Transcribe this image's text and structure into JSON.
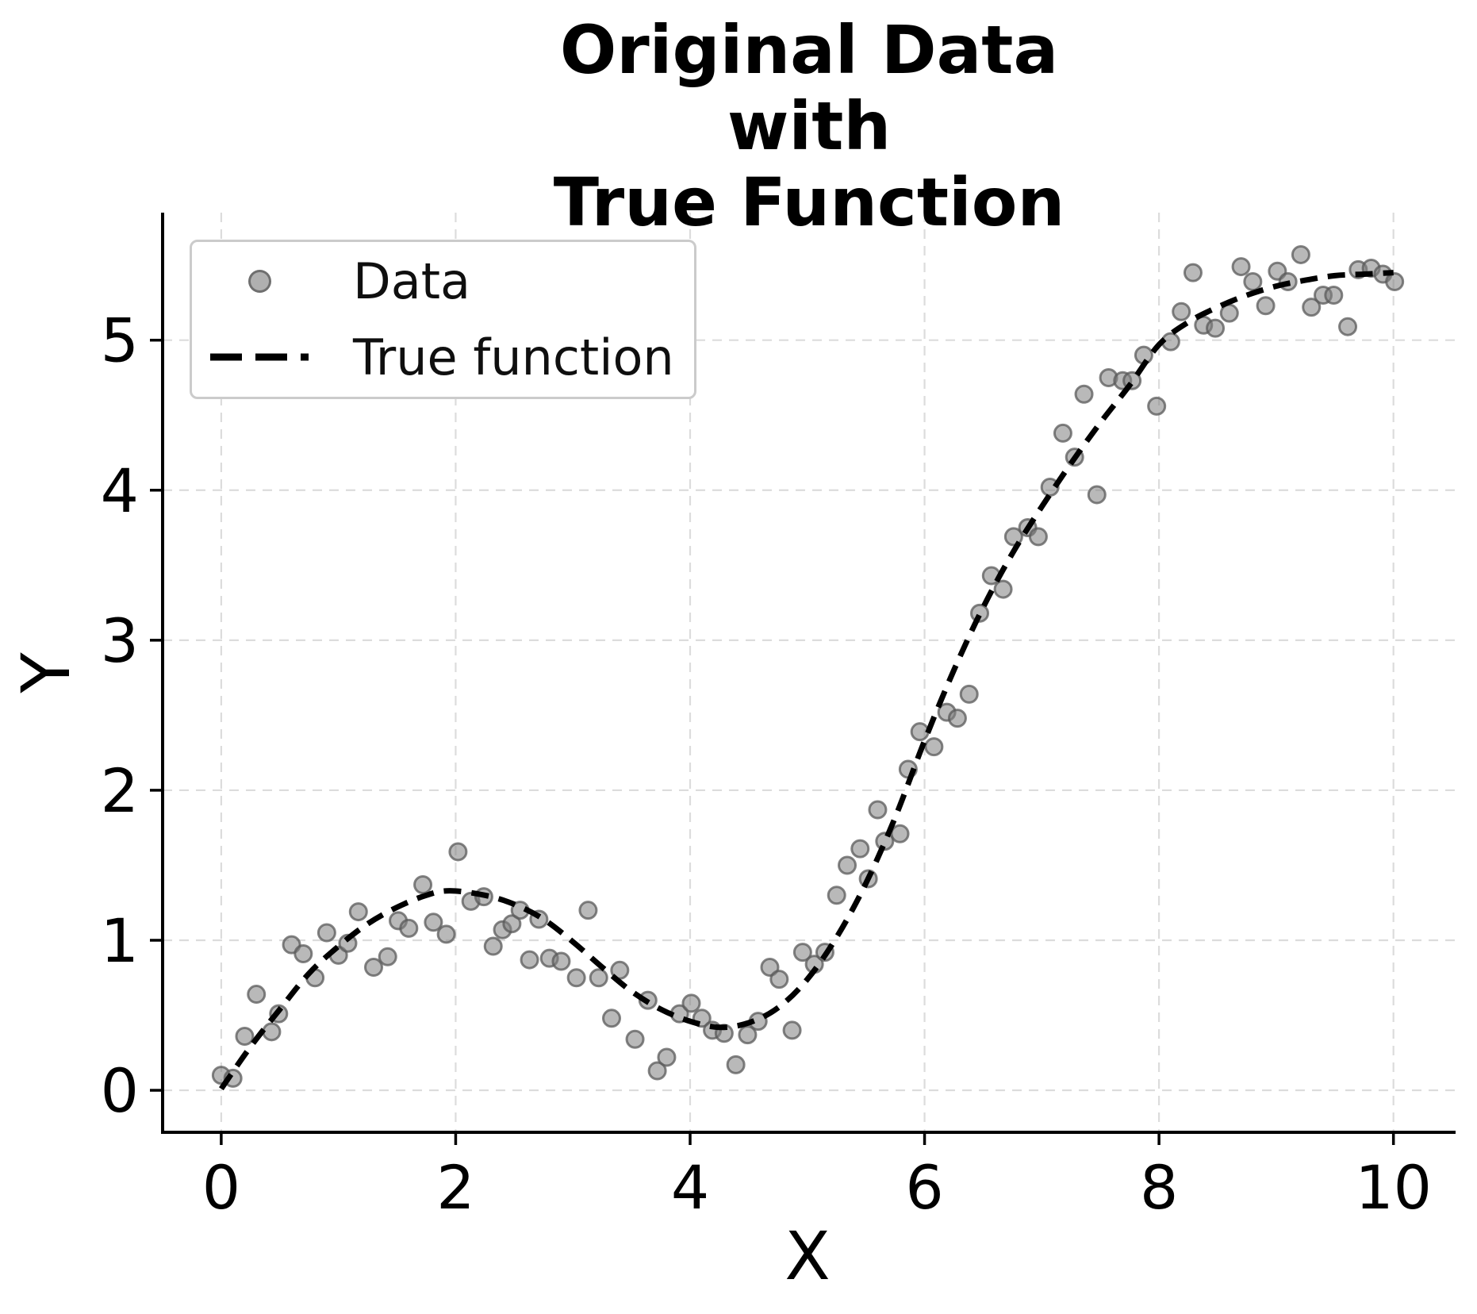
{
  "chart": {
    "title": "Original Data with\nTrue Function",
    "xlabel": "X",
    "ylabel": "Y",
    "legend": {
      "data_label": "Data",
      "true_function_label": "True function"
    }
  },
  "chart_data": {
    "type": "scatter",
    "title": "Original Data with True Function",
    "xlabel": "X",
    "ylabel": "Y",
    "xlim": [
      -0.5,
      10.53
    ],
    "ylim": [
      -0.28,
      5.85
    ],
    "xticks": [
      0,
      2,
      4,
      6,
      8,
      10
    ],
    "yticks": [
      0,
      1,
      2,
      3,
      4,
      5
    ],
    "grid": true,
    "legend_position": "upper left",
    "series": [
      {
        "name": "Data",
        "type": "scatter",
        "marker_color": "#808080",
        "points": [
          [
            0.0,
            0.1
          ],
          [
            0.1,
            0.08
          ],
          [
            0.2,
            0.36
          ],
          [
            0.3,
            0.64
          ],
          [
            0.43,
            0.39
          ],
          [
            0.49,
            0.51
          ],
          [
            0.6,
            0.97
          ],
          [
            0.7,
            0.91
          ],
          [
            0.8,
            0.75
          ],
          [
            0.9,
            1.05
          ],
          [
            1.0,
            0.9
          ],
          [
            1.08,
            0.98
          ],
          [
            1.17,
            1.19
          ],
          [
            1.3,
            0.82
          ],
          [
            1.42,
            0.89
          ],
          [
            1.51,
            1.13
          ],
          [
            1.6,
            1.08
          ],
          [
            1.72,
            1.37
          ],
          [
            1.81,
            1.12
          ],
          [
            1.92,
            1.04
          ],
          [
            2.02,
            1.59
          ],
          [
            2.13,
            1.26
          ],
          [
            2.24,
            1.29
          ],
          [
            2.32,
            0.96
          ],
          [
            2.4,
            1.07
          ],
          [
            2.48,
            1.11
          ],
          [
            2.55,
            1.2
          ],
          [
            2.63,
            0.87
          ],
          [
            2.71,
            1.14
          ],
          [
            2.8,
            0.88
          ],
          [
            2.9,
            0.86
          ],
          [
            3.03,
            0.75
          ],
          [
            3.13,
            1.2
          ],
          [
            3.22,
            0.75
          ],
          [
            3.33,
            0.48
          ],
          [
            3.4,
            0.8
          ],
          [
            3.53,
            0.34
          ],
          [
            3.64,
            0.6
          ],
          [
            3.72,
            0.13
          ],
          [
            3.8,
            0.22
          ],
          [
            3.91,
            0.51
          ],
          [
            4.01,
            0.58
          ],
          [
            4.1,
            0.48
          ],
          [
            4.19,
            0.4
          ],
          [
            4.29,
            0.38
          ],
          [
            4.39,
            0.17
          ],
          [
            4.49,
            0.37
          ],
          [
            4.58,
            0.46
          ],
          [
            4.68,
            0.82
          ],
          [
            4.76,
            0.74
          ],
          [
            4.87,
            0.4
          ],
          [
            4.96,
            0.92
          ],
          [
            5.06,
            0.84
          ],
          [
            5.15,
            0.92
          ],
          [
            5.25,
            1.3
          ],
          [
            5.34,
            1.5
          ],
          [
            5.45,
            1.61
          ],
          [
            5.52,
            1.41
          ],
          [
            5.6,
            1.87
          ],
          [
            5.66,
            1.66
          ],
          [
            5.79,
            1.71
          ],
          [
            5.86,
            2.14
          ],
          [
            5.96,
            2.39
          ],
          [
            6.08,
            2.29
          ],
          [
            6.19,
            2.52
          ],
          [
            6.28,
            2.48
          ],
          [
            6.38,
            2.64
          ],
          [
            6.47,
            3.18
          ],
          [
            6.57,
            3.43
          ],
          [
            6.67,
            3.34
          ],
          [
            6.76,
            3.69
          ],
          [
            6.88,
            3.75
          ],
          [
            6.97,
            3.69
          ],
          [
            7.07,
            4.02
          ],
          [
            7.18,
            4.38
          ],
          [
            7.28,
            4.22
          ],
          [
            7.36,
            4.64
          ],
          [
            7.47,
            3.97
          ],
          [
            7.57,
            4.75
          ],
          [
            7.69,
            4.73
          ],
          [
            7.77,
            4.73
          ],
          [
            7.87,
            4.9
          ],
          [
            7.98,
            4.56
          ],
          [
            8.1,
            4.99
          ],
          [
            8.19,
            5.19
          ],
          [
            8.29,
            5.45
          ],
          [
            8.38,
            5.1
          ],
          [
            8.48,
            5.08
          ],
          [
            8.6,
            5.18
          ],
          [
            8.7,
            5.49
          ],
          [
            8.8,
            5.39
          ],
          [
            8.91,
            5.23
          ],
          [
            9.01,
            5.46
          ],
          [
            9.1,
            5.39
          ],
          [
            9.21,
            5.57
          ],
          [
            9.3,
            5.22
          ],
          [
            9.4,
            5.3
          ],
          [
            9.49,
            5.3
          ],
          [
            9.61,
            5.09
          ],
          [
            9.7,
            5.47
          ],
          [
            9.81,
            5.48
          ],
          [
            9.91,
            5.44
          ],
          [
            10.01,
            5.39
          ]
        ]
      },
      {
        "name": "True function",
        "type": "line",
        "line_style": "dashed",
        "line_color": "#000000",
        "points": [
          [
            0.0,
            0.01
          ],
          [
            0.25,
            0.29
          ],
          [
            0.5,
            0.54
          ],
          [
            0.75,
            0.78
          ],
          [
            1.0,
            0.96
          ],
          [
            1.25,
            1.11
          ],
          [
            1.5,
            1.22
          ],
          [
            1.75,
            1.3
          ],
          [
            1.95,
            1.33
          ],
          [
            2.25,
            1.3
          ],
          [
            2.5,
            1.24
          ],
          [
            2.75,
            1.14
          ],
          [
            3.0,
            0.99
          ],
          [
            3.25,
            0.82
          ],
          [
            3.5,
            0.66
          ],
          [
            3.75,
            0.54
          ],
          [
            4.0,
            0.46
          ],
          [
            4.25,
            0.42
          ],
          [
            4.5,
            0.45
          ],
          [
            4.75,
            0.55
          ],
          [
            5.0,
            0.74
          ],
          [
            5.25,
            1.02
          ],
          [
            5.5,
            1.38
          ],
          [
            5.75,
            1.82
          ],
          [
            6.0,
            2.33
          ],
          [
            6.25,
            2.8
          ],
          [
            6.5,
            3.22
          ],
          [
            6.75,
            3.58
          ],
          [
            7.0,
            3.89
          ],
          [
            7.25,
            4.18
          ],
          [
            7.5,
            4.45
          ],
          [
            7.75,
            4.7
          ],
          [
            8.0,
            4.97
          ],
          [
            8.25,
            5.12
          ],
          [
            8.5,
            5.22
          ],
          [
            8.75,
            5.3
          ],
          [
            9.0,
            5.36
          ],
          [
            9.25,
            5.4
          ],
          [
            9.5,
            5.43
          ],
          [
            9.75,
            5.44
          ],
          [
            10.0,
            5.45
          ]
        ]
      }
    ]
  },
  "style": {
    "grid_color": "#dcdcdc",
    "spine_color": "#000000",
    "tick_label_color": "#000000",
    "marker_fill": "#808080",
    "marker_edge": "#5a5a5a",
    "dash_color": "#000000",
    "legend_border": "#cbcbcb"
  }
}
